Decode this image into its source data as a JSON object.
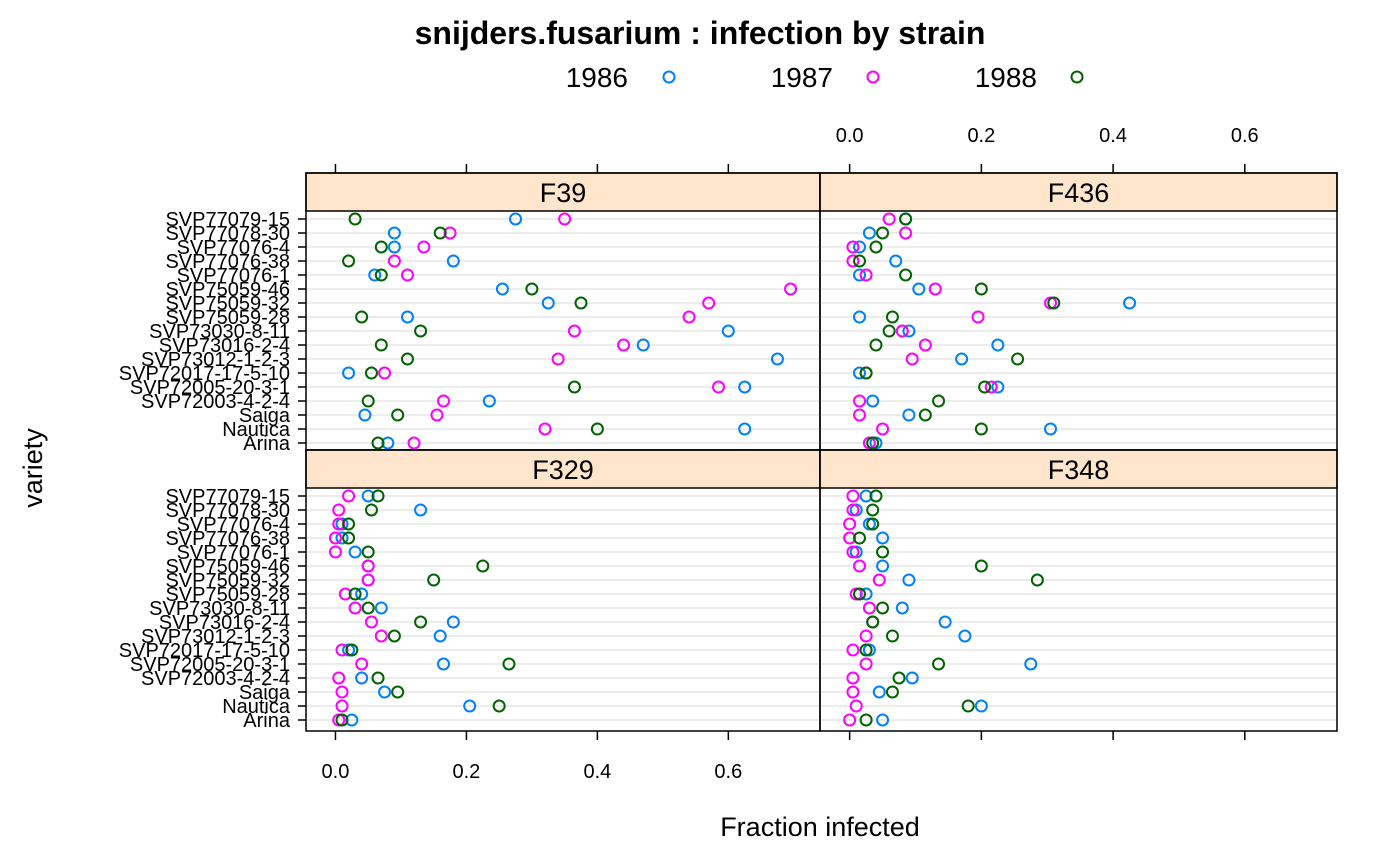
{
  "chart_data": {
    "type": "scatter",
    "title": "snijders.fusarium : infection by strain",
    "xlabel": "Fraction infected",
    "ylabel": "variety",
    "xlim": [
      -0.045,
      0.74
    ],
    "x_ticks": [
      0.0,
      0.2,
      0.4,
      0.6
    ],
    "x_tick_labels": [
      "0.0",
      "0.2",
      "0.4",
      "0.6"
    ],
    "grid": true,
    "legend_position": "top",
    "series": [
      {
        "name": "1986",
        "color": "#0080ff"
      },
      {
        "name": "1987",
        "color": "#ff00ff"
      },
      {
        "name": "1988",
        "color": "#006400"
      }
    ],
    "varieties": [
      "SVP77079-15",
      "SVP77078-30",
      "SVP77076-4",
      "SVP77076-38",
      "SVP77076-1",
      "SVP75059-46",
      "SVP75059-32",
      "SVP75059-28",
      "SVP73030-8-11",
      "SVP73016-2-4",
      "SVP73012-1-2-3",
      "SVP72017-17-5-10",
      "SVP72005-20-3-1",
      "SVP72003-4-2-4",
      "Saiga",
      "Nautica",
      "Arina"
    ],
    "panels": [
      {
        "strain": "F39",
        "values": {
          "1986": [
            0.275,
            0.09,
            0.09,
            0.18,
            0.06,
            0.255,
            0.325,
            0.11,
            0.6,
            0.47,
            0.675,
            0.02,
            0.625,
            0.235,
            0.045,
            0.625,
            0.08
          ],
          "1987": [
            0.35,
            0.175,
            0.135,
            0.09,
            0.11,
            0.695,
            0.57,
            0.54,
            0.365,
            0.44,
            0.34,
            0.075,
            0.585,
            0.165,
            0.155,
            0.32,
            0.12
          ],
          "1988": [
            0.03,
            0.16,
            0.07,
            0.02,
            0.07,
            0.3,
            0.375,
            0.04,
            0.13,
            0.07,
            0.11,
            0.055,
            0.365,
            0.05,
            0.095,
            0.4,
            0.065
          ]
        }
      },
      {
        "strain": "F436",
        "values": {
          "1986": [
            0.085,
            0.03,
            0.015,
            0.07,
            0.015,
            0.105,
            0.425,
            0.015,
            0.09,
            0.225,
            0.17,
            0.015,
            0.225,
            0.035,
            0.09,
            0.305,
            0.04
          ],
          "1987": [
            0.06,
            0.085,
            0.005,
            0.005,
            0.025,
            0.13,
            0.305,
            0.195,
            0.08,
            0.115,
            0.095,
            0.025,
            0.215,
            0.015,
            0.015,
            0.05,
            0.03
          ],
          "1988": [
            0.085,
            0.05,
            0.04,
            0.015,
            0.085,
            0.2,
            0.31,
            0.065,
            0.06,
            0.04,
            0.255,
            0.025,
            0.205,
            0.135,
            0.115,
            0.2,
            0.035
          ]
        }
      },
      {
        "strain": "F329",
        "values": {
          "1986": [
            0.05,
            0.13,
            0.01,
            0.01,
            0.03,
            0.05,
            0.05,
            0.04,
            0.07,
            0.18,
            0.16,
            0.02,
            0.165,
            0.04,
            0.075,
            0.205,
            0.025
          ],
          "1987": [
            0.02,
            0.005,
            0.005,
            0.0,
            0.0,
            0.05,
            0.05,
            0.015,
            0.03,
            0.055,
            0.07,
            0.01,
            0.04,
            0.005,
            0.01,
            0.01,
            0.005
          ],
          "1988": [
            0.065,
            0.055,
            0.02,
            0.02,
            0.05,
            0.225,
            0.15,
            0.03,
            0.05,
            0.13,
            0.09,
            0.025,
            0.265,
            0.065,
            0.095,
            0.25,
            0.01
          ]
        }
      },
      {
        "strain": "F348",
        "values": {
          "1986": [
            0.025,
            0.01,
            0.03,
            0.05,
            0.01,
            0.05,
            0.09,
            0.025,
            0.08,
            0.145,
            0.175,
            0.03,
            0.275,
            0.095,
            0.045,
            0.2,
            0.05
          ],
          "1987": [
            0.005,
            0.005,
            0.0,
            0.0,
            0.005,
            0.015,
            0.045,
            0.01,
            0.03,
            0.035,
            0.025,
            0.005,
            0.025,
            0.005,
            0.005,
            0.01,
            0.0
          ],
          "1988": [
            0.04,
            0.035,
            0.035,
            0.015,
            0.05,
            0.2,
            0.285,
            0.015,
            0.05,
            0.035,
            0.065,
            0.025,
            0.135,
            0.075,
            0.065,
            0.18,
            0.025
          ]
        }
      }
    ]
  }
}
